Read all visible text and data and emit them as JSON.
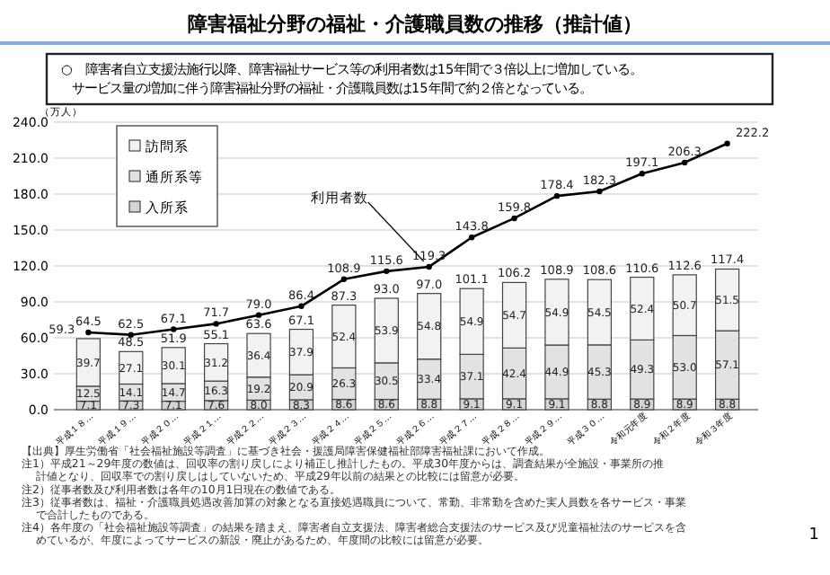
{
  "chart_data": {
    "type": "bar",
    "title": "障害福祉分野の福祉・介護職員数の推移（推計値）",
    "subtitle": "○　障害者自立支援法施行以降、障害福祉サービス等の利用者数は15年間で３倍以上に増加している。サービス量の増加に伴う障害福祉分野の福祉・介護職員数は15年間で約２倍となっている。",
    "ylabel": "（万人）",
    "categories": [
      "平成１８…",
      "平成１９…",
      "平成２０…",
      "平成２１…",
      "平成２２…",
      "平成２３…",
      "平成２４…",
      "平成２５…",
      "平成２６…",
      "平成２７…",
      "平成２８…",
      "平成２９…",
      "平成３０…",
      "令和元年度",
      "令和２年度",
      "令和３年度"
    ],
    "stacked": true,
    "series": [
      {
        "name": "入所系",
        "color": "#d4d4d4",
        "values": [
          7.1,
          7.3,
          7.1,
          7.6,
          8.0,
          8.3,
          8.6,
          8.6,
          8.8,
          9.1,
          9.1,
          9.1,
          8.8,
          8.9,
          8.9,
          8.8
        ],
        "value_labels": [
          "7.1",
          "7.3",
          "7.1",
          "7.6",
          "8.0",
          "8.3",
          "8.6",
          "8.6",
          "8.8",
          "9.1",
          "9.1",
          "9.1",
          "8.8",
          "8.9",
          "8.9",
          "8.8"
        ]
      },
      {
        "name": "通所系等",
        "color": "#e2e2e2",
        "values": [
          12.5,
          14.1,
          14.7,
          16.3,
          19.2,
          20.9,
          26.3,
          30.5,
          33.4,
          37.1,
          42.4,
          44.9,
          45.3,
          49.3,
          53.0,
          57.1
        ],
        "value_labels": [
          "12.5",
          "14.1",
          "14.7",
          "16.3",
          "19.2",
          "20.9",
          "26.3",
          "30.5",
          "33.4",
          "37.1",
          "42.4",
          "44.9",
          "45.3",
          "49.3",
          "53.0",
          "57.1"
        ]
      },
      {
        "name": "訪問系",
        "color": "#f2f2f2",
        "values": [
          39.7,
          27.1,
          30.1,
          31.2,
          36.4,
          37.9,
          52.4,
          53.9,
          54.8,
          54.9,
          54.7,
          54.9,
          54.5,
          52.4,
          50.7,
          51.5
        ],
        "value_labels": [
          "39.7",
          "27.1",
          "30.1",
          "31.2",
          "36.4",
          "37.9",
          "52.4",
          "53.9",
          "54.8",
          "54.9",
          "54.7",
          "54.9",
          "54.5",
          "52.4",
          "50.7",
          "51.5"
        ]
      },
      {
        "name": "利用者数",
        "type": "line",
        "color": "#000000",
        "values": [
          64.5,
          62.5,
          67.1,
          71.7,
          79.0,
          86.4,
          108.9,
          115.6,
          119.3,
          143.8,
          159.8,
          178.4,
          182.3,
          197.1,
          206.3,
          222.2
        ],
        "value_labels": [
          "64.5",
          "62.5",
          "67.1",
          "71.7",
          "79.0",
          "86.4",
          "108.9",
          "115.6",
          "119.3",
          "143.8",
          "159.8",
          "178.4",
          "182.3",
          "197.1",
          "206.3",
          "222.2"
        ]
      }
    ],
    "totals": [
      "59.3",
      "48.5",
      "51.9",
      "55.1",
      "63.6",
      "67.1",
      "87.3",
      "93.0",
      "97.0",
      "101.1",
      "106.2",
      "108.9",
      "108.6",
      "110.6",
      "112.6",
      "117.4"
    ],
    "marker": "circle",
    "ylim": [
      0,
      240
    ],
    "yticks": [
      {
        "value": 0,
        "label": "0.0"
      },
      {
        "value": 30,
        "label": "30.0"
      },
      {
        "value": 60,
        "label": "60.0"
      },
      {
        "value": 90,
        "label": "90.0"
      },
      {
        "value": 120,
        "label": "120.0"
      },
      {
        "value": 150,
        "label": "150.0"
      },
      {
        "value": 180,
        "label": "180.0"
      },
      {
        "value": 210,
        "label": "210.0"
      },
      {
        "value": 240,
        "label": "240.0"
      }
    ],
    "grid": "y",
    "legend": "top left",
    "annotations": [
      "【出典】厚生労働省「社会福祉施設等調査」に基づき社会・援護局障害保健福祉部障害福祉課において作成。",
      "注1）平成21～29年度の数値は、回収率の割り戻しにより補正し推計したもの。平成30年度からは、調査結果が全施設・事業所の推計値となり、回収率での割り戻しはしていないため、平成29年以前の結果との比較には留意が必要。",
      "注2）従事者数及び利用者数は各年の10月1日現在の数値である。",
      "注3）従事者数は、福祉・介護職員処遇改善加算の対象となる直接処遇職員について、常勤、非常勤を含めた実人員数を各サービス・事業で合計したものである。",
      "注4）各年度の「社会福祉施設等調査」の結果を踏まえ、障害者自立支援法、障害者総合支援法のサービス及び児童福祉法のサービスを含めているが、年度によってサービスの新設・廃止があるため、年度間の比較には留意が必要。",
      "1"
    ]
  }
}
